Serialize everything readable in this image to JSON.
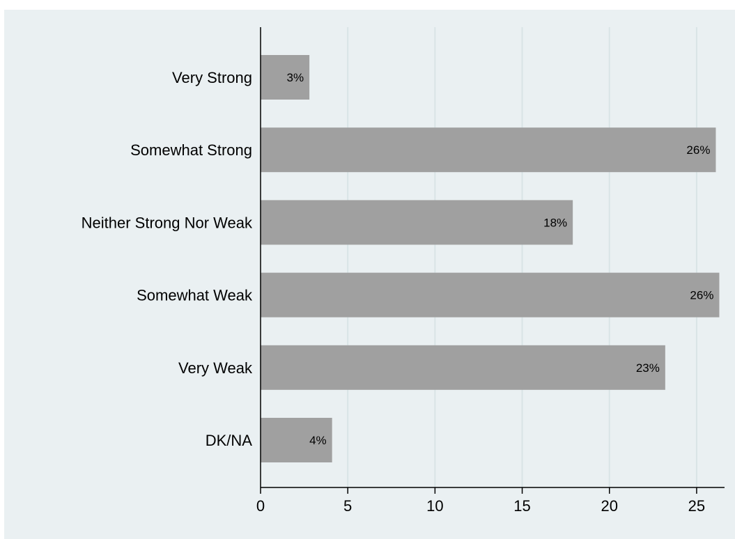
{
  "chart_data": {
    "type": "bar",
    "orientation": "horizontal",
    "title": "",
    "xlabel": "",
    "ylabel": "",
    "categories": [
      "Very Strong",
      "Somewhat Strong",
      "Neither Strong Nor Weak",
      "Somewhat Weak",
      "Very Weak",
      "DK/NA"
    ],
    "values": [
      2.8,
      26.1,
      17.9,
      26.3,
      23.2,
      4.1
    ],
    "data_labels": [
      "3%",
      "26%",
      "18%",
      "26%",
      "23%",
      "4%"
    ],
    "xlim": [
      0,
      27.2
    ],
    "xticks": [
      0,
      5,
      10,
      15,
      20,
      25
    ],
    "grid": "vertical",
    "legend": "none",
    "colors": {
      "bar": "#a0a0a0",
      "plot_background": "#eaf0f2",
      "gridline": "#d9e4e6",
      "axis": "#000000"
    }
  }
}
